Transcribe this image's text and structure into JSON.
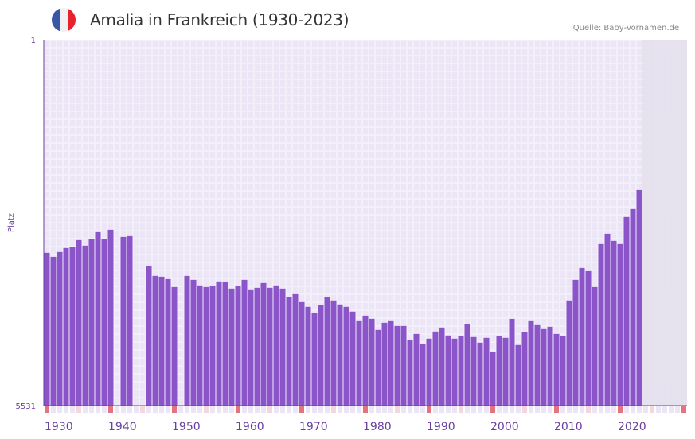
{
  "header": {
    "title": "Amalia in Frankreich (1930-2023)",
    "source": "Quelle: Baby-Vornamen.de",
    "flag_icon": "france-flag-icon"
  },
  "colors": {
    "bar": "#8b54c9",
    "axis": "#6a3fa0",
    "grid_bg": "#f2eefa",
    "grid_cell": "#ebe5f6",
    "future": "#e4e0ec",
    "decade_marker": "#e5737f",
    "half_marker": "#f5d6df"
  },
  "chart_data": {
    "type": "bar",
    "title": "Amalia in Frankreich (1930-2023)",
    "ylabel": "Platz",
    "y_top_label": "1",
    "y_bottom_label": "5531",
    "ylim": [
      1,
      5531
    ],
    "y_inverted": true,
    "xlim": [
      1930,
      2030
    ],
    "x_ticks": [
      "1930",
      "1940",
      "1950",
      "1960",
      "1970",
      "1980",
      "1990",
      "2000",
      "2010",
      "2020"
    ],
    "years": [
      1930,
      1931,
      1932,
      1933,
      1934,
      1935,
      1936,
      1937,
      1938,
      1939,
      1940,
      1941,
      1942,
      1943,
      1944,
      1945,
      1946,
      1947,
      1948,
      1949,
      1950,
      1951,
      1952,
      1953,
      1954,
      1955,
      1956,
      1957,
      1958,
      1959,
      1960,
      1961,
      1962,
      1963,
      1964,
      1965,
      1966,
      1967,
      1968,
      1969,
      1970,
      1971,
      1972,
      1973,
      1974,
      1975,
      1976,
      1977,
      1978,
      1979,
      1980,
      1981,
      1982,
      1983,
      1984,
      1985,
      1986,
      1987,
      1988,
      1989,
      1990,
      1991,
      1992,
      1993,
      1994,
      1995,
      1996,
      1997,
      1998,
      1999,
      2000,
      2001,
      2002,
      2003,
      2004,
      2005,
      2006,
      2007,
      2008,
      2009,
      2010,
      2011,
      2012,
      2013,
      2014,
      2015,
      2016,
      2017,
      2018,
      2019,
      2020,
      2021,
      2022,
      2023
    ],
    "ranks": [
      3221,
      3282,
      3209,
      3149,
      3137,
      3029,
      3113,
      3017,
      2909,
      3017,
      2873,
      null,
      2981,
      2969,
      null,
      null,
      3426,
      3570,
      3582,
      3618,
      3738,
      null,
      3570,
      3630,
      3714,
      3738,
      3726,
      3654,
      3666,
      3762,
      3726,
      3630,
      3786,
      3750,
      3678,
      3750,
      3714,
      3762,
      3894,
      3846,
      3966,
      4038,
      4134,
      4014,
      3894,
      3942,
      4002,
      4038,
      4110,
      4243,
      4171,
      4219,
      4387,
      4279,
      4243,
      4327,
      4327,
      4543,
      4447,
      4603,
      4519,
      4411,
      4351,
      4471,
      4519,
      4483,
      4303,
      4495,
      4579,
      4507,
      4723,
      4483,
      4507,
      4219,
      4615,
      4423,
      4243,
      4315,
      4375,
      4339,
      4447,
      4483,
      3942,
      3630,
      3450,
      3498,
      3738,
      3089,
      2933,
      3041,
      3089,
      2680,
      2560,
      2272
    ]
  }
}
